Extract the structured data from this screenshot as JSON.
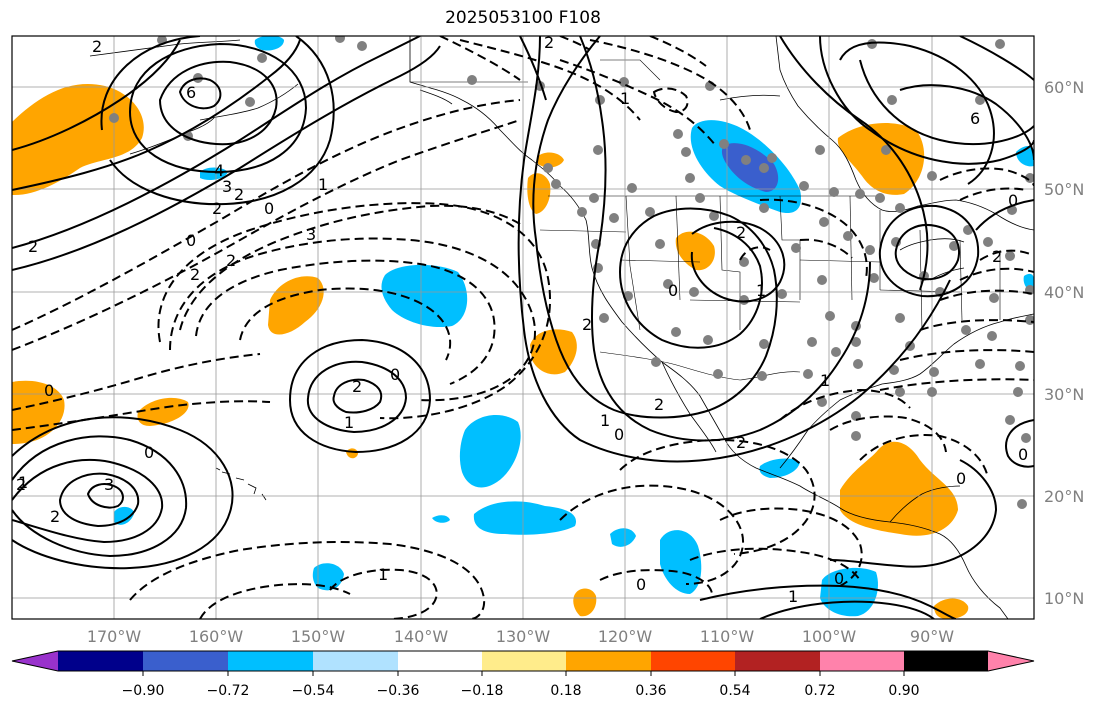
{
  "title": "2025053100 F108",
  "map": {
    "lon_range": [
      -180,
      -80
    ],
    "lat_range": [
      8,
      65
    ],
    "lon_ticks": [
      "170°W",
      "160°W",
      "150°W",
      "140°W",
      "130°W",
      "120°W",
      "110°W",
      "100°W",
      "90°W"
    ],
    "lat_ticks": [
      "60°N",
      "50°N",
      "40°N",
      "30°N",
      "20°N",
      "10°N"
    ],
    "grid": true
  },
  "colorbar": {
    "colors": [
      "#9932CC",
      "#00008B",
      "#3A5FCD",
      "#00BFFF",
      "#B0E2FF",
      "#FFFFFF",
      "#FFEC8B",
      "#FFA500",
      "#FF4500",
      "#B22222",
      "#FF82AB"
    ],
    "tick_labels": [
      "−0.90",
      "−0.72",
      "−0.54",
      "−0.36",
      "−0.18",
      "0.18",
      "0.36",
      "0.54",
      "0.72",
      "0.90"
    ],
    "extend": "both"
  },
  "contour_labels": [
    "2",
    "6",
    "4",
    "3",
    "2",
    "2",
    "0",
    "0",
    "2",
    "2",
    "3",
    "2",
    "1",
    "0",
    "0",
    "2",
    "1",
    "0",
    "3",
    "2",
    "1",
    "0",
    "2",
    "1",
    "2",
    "0",
    "2",
    "1",
    "2",
    "1",
    "0",
    "1",
    "2",
    "6",
    "0",
    "2",
    "0",
    "0",
    "0",
    "1",
    "2",
    "1"
  ]
}
